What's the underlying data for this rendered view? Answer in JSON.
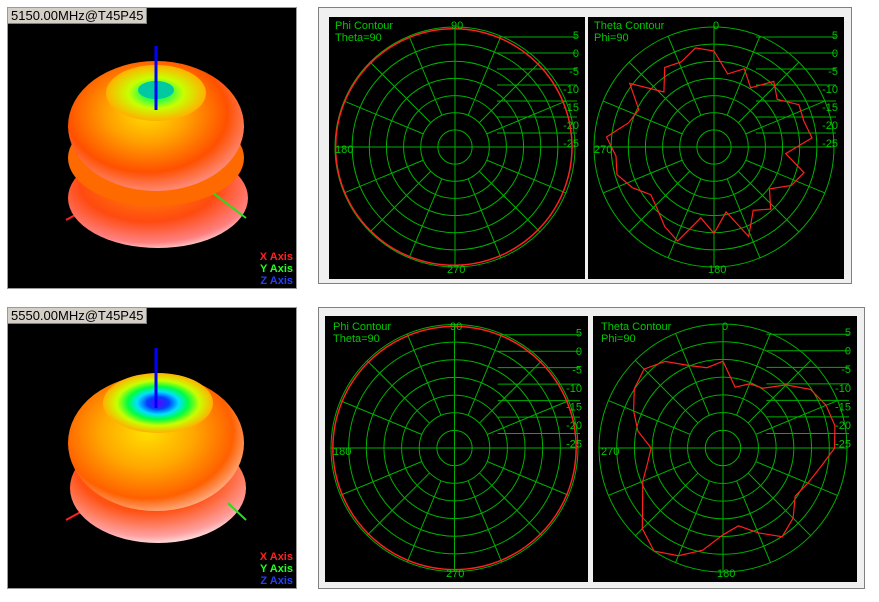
{
  "colors": {
    "grid": "#00b000",
    "trace": "#ff2020",
    "bg": "#000000",
    "label": "#00c800"
  },
  "rows": [
    {
      "frequency_label": "5150.00MHz@T45P45",
      "axes_legend": {
        "x": "X Axis",
        "y": "Y Axis",
        "z": "Z Axis"
      },
      "phi_plot": {
        "title": "Phi Contour",
        "subtitle": "Theta=90",
        "angle_labels": {
          "top": "90",
          "left": "180",
          "bottom": "270"
        },
        "scale_labels": [
          "5",
          "0",
          "-5",
          "-10",
          "-15",
          "-20",
          "-25"
        ]
      },
      "theta_plot": {
        "title": "Theta Contour",
        "subtitle": "Phi=90",
        "angle_labels": {
          "top": "0",
          "left": "270",
          "bottom": "180"
        },
        "scale_labels": [
          "5",
          "0",
          "-5",
          "-10",
          "-15",
          "-20",
          "-25"
        ]
      }
    },
    {
      "frequency_label": "5550.00MHz@T45P45",
      "axes_legend": {
        "x": "X Axis",
        "y": "Y Axis",
        "z": "Z Axis"
      },
      "phi_plot": {
        "title": "Phi Contour",
        "subtitle": "Theta=90",
        "angle_labels": {
          "top": "90",
          "left": "180",
          "bottom": "270"
        },
        "scale_labels": [
          "5",
          "0",
          "-5",
          "-10",
          "-15",
          "-20",
          "-25"
        ]
      },
      "theta_plot": {
        "title": "Theta Contour",
        "subtitle": "Phi=90",
        "angle_labels": {
          "top": "0",
          "left": "270",
          "bottom": "180"
        },
        "scale_labels": [
          "5",
          "0",
          "-5",
          "-10",
          "-15",
          "-20",
          "-25"
        ]
      }
    }
  ]
}
